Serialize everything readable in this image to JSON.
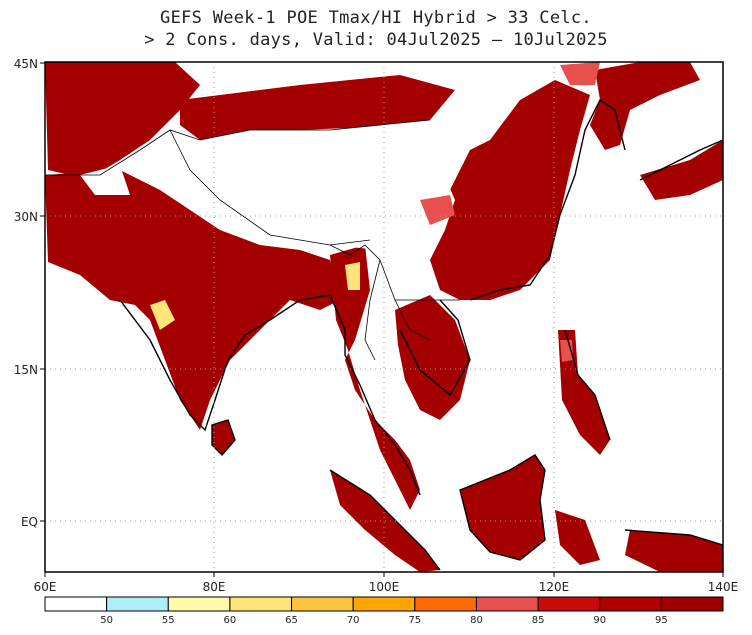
{
  "title_line1": "GEFS Week-1 POE Tmax/HI Hybrid > 33 Celc.",
  "title_line2": "> 2 Cons. days, Valid: 04Jul2025 – 10Jul2025",
  "lat_labels": [
    "45N",
    "30N",
    "15N",
    "EQ"
  ],
  "lon_labels": [
    "60E",
    "80E",
    "100E",
    "120E",
    "140E"
  ],
  "colorbar": {
    "thresholds": [
      "50",
      "55",
      "60",
      "65",
      "70",
      "75",
      "80",
      "85",
      "90",
      "95"
    ],
    "colors": [
      "#ffffff",
      "#aeeef8",
      "#fffaaa",
      "#ffe478",
      "#ffc342",
      "#ffa500",
      "#ff6a00",
      "#e8504e",
      "#c80a0a",
      "#b00000",
      "#a00000"
    ]
  },
  "field_colors": {
    "high": "#a50000",
    "mid": "#e8504e",
    "low": "#ffe478"
  }
}
